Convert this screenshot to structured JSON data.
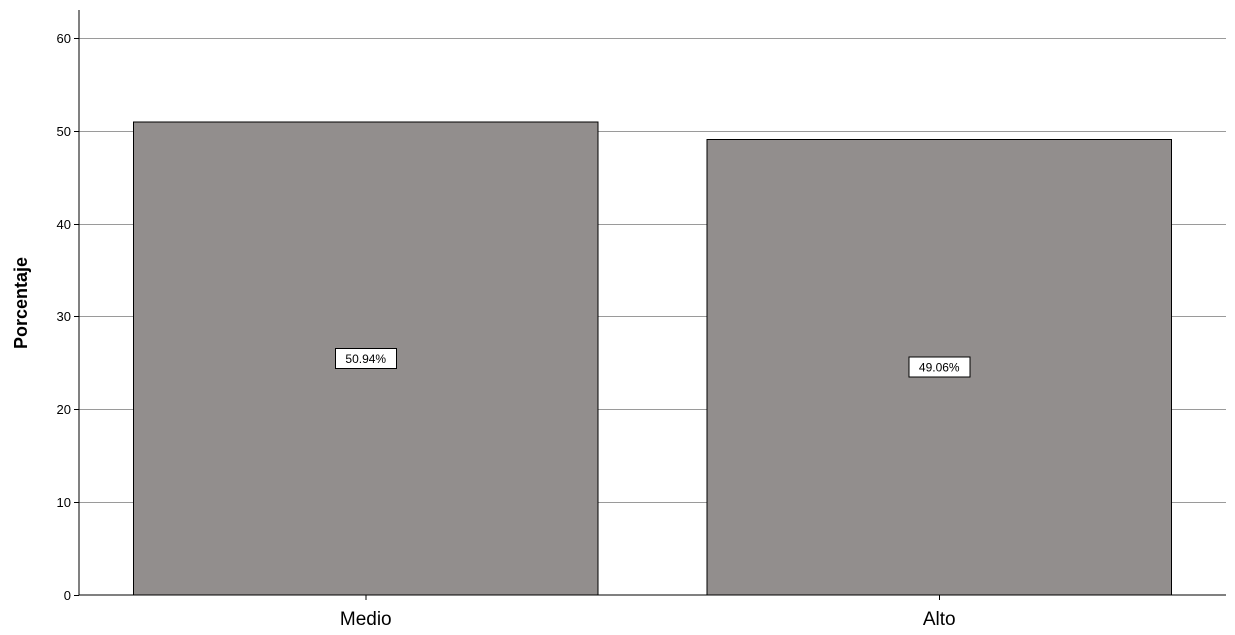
{
  "chart_data": {
    "type": "bar",
    "categories": [
      "Medio",
      "Alto"
    ],
    "values": [
      50.94,
      49.06
    ],
    "data_labels": [
      "50.94%",
      "49.06%"
    ],
    "title": "",
    "xlabel": "",
    "ylabel": "Porcentaje",
    "ylim": [
      0,
      63
    ],
    "yticks": [
      0,
      10,
      20,
      30,
      40,
      50,
      60
    ],
    "grid": true,
    "legend": "none",
    "bar_color": "#928e8d",
    "grid_color": "#9a9a9a"
  }
}
